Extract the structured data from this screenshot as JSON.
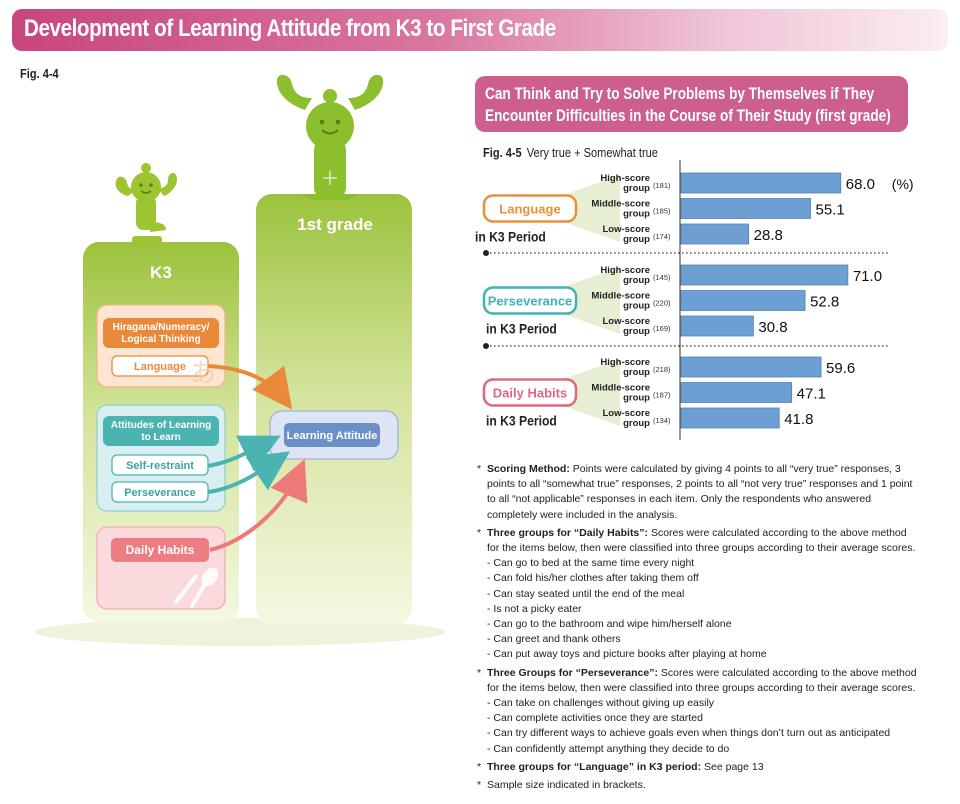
{
  "header": {
    "title": "Development of Learning Attitude from K3 to First Grade"
  },
  "fig44": {
    "label": "Fig. 4-4",
    "k3_label": "K3",
    "grade_label": "1st grade",
    "hnl_box": "Hiragana/Numeracy/ Logical Thinking",
    "language": "Language",
    "attitudes_box": "Attitudes of Learning to Learn",
    "self_restraint": "Self-restraint",
    "perseverance": "Perseverance",
    "daily_habits": "Daily Habits",
    "learning_attitude": "Learning Attitude"
  },
  "fig45": {
    "title_line1": "Can Think and Try to Solve Problems by Themselves if They",
    "title_line2": "Encounter Difficulties in the Course of Their Study (first grade)",
    "label": "Fig. 4-5",
    "subtitle": "Very true + Somewhat true",
    "unit": "(%)",
    "in_k3": "in K3 Period"
  },
  "chart_data": {
    "type": "bar",
    "orientation": "horizontal",
    "title": "Can Think and Try to Solve Problems by Themselves if They Encounter Difficulties in the Course of Their Study (first grade)",
    "subtitle": "Very true + Somewhat true",
    "unit": "(%)",
    "xlim": [
      0,
      100
    ],
    "bar_color": "#6d9fd3",
    "groups": [
      {
        "name": "Language",
        "suffix": "in K3 Period",
        "color": "#e6923a",
        "bars": [
          {
            "label": "High-score group",
            "n": "(181)",
            "value": 68.0,
            "display": "68.0"
          },
          {
            "label": "Middle-score group",
            "n": "(185)",
            "value": 55.1,
            "display": "55.1"
          },
          {
            "label": "Low-score group",
            "n": "(174)",
            "value": 28.8,
            "display": "28.8"
          }
        ]
      },
      {
        "name": "Perseverance",
        "suffix": "in K3 Period",
        "color": "#3fb3b7",
        "bars": [
          {
            "label": "High-score group",
            "n": "(145)",
            "value": 71.0,
            "display": "71.0"
          },
          {
            "label": "Middle-score group",
            "n": "(220)",
            "value": 52.8,
            "display": "52.8"
          },
          {
            "label": "Low-score group",
            "n": "(169)",
            "value": 30.8,
            "display": "30.8"
          }
        ]
      },
      {
        "name": "Daily Habits",
        "suffix": "in K3 Period",
        "color": "#e0687e",
        "bars": [
          {
            "label": "High-score group",
            "n": "(218)",
            "value": 59.6,
            "display": "59.6"
          },
          {
            "label": "Middle-score group",
            "n": "(187)",
            "value": 47.1,
            "display": "47.1"
          },
          {
            "label": "Low-score group",
            "n": "(134)",
            "value": 41.8,
            "display": "41.8"
          }
        ]
      }
    ]
  },
  "notes": {
    "scoring_title": "Scoring Method:",
    "scoring_text": " Points were calculated by giving 4 points to all “very true” responses, 3 points to all “somewhat true” responses, 2 points to all “not very true” responses and 1 point to all “not applicable” responses in each item. Only the respondents who answered completely were included in the analysis.",
    "daily_title": "Three groups for “Daily Habits”:",
    "daily_text": " Scores were calculated according to the above method for the items below, then were classified into three groups according to their average scores.",
    "daily_items": [
      "- Can go to bed at the same time every night",
      "- Can fold his/her clothes after taking them off",
      "- Can stay seated until the end of the meal",
      "- Is not a picky eater",
      "- Can go to the bathroom and wipe him/herself alone",
      "- Can greet and thank others",
      "- Can put away toys and picture books after playing at home"
    ],
    "pers_title": "Three Groups for “Perseverance”:",
    "pers_text": " Scores were calculated according to the above method for the items below, then were classified into three groups according to their average scores.",
    "pers_items": [
      "- Can take on challenges without giving up easily",
      "- Can complete activities once they are started",
      "- Can try different ways to achieve goals even when things don’t turn out as anticipated",
      "- Can confidently attempt anything they decide to do"
    ],
    "lang_title": "Three groups for “Language” in K3 period:",
    "lang_text": "  See page 13",
    "sample": "Sample size indicated in brackets.",
    "asterisk": "*"
  }
}
